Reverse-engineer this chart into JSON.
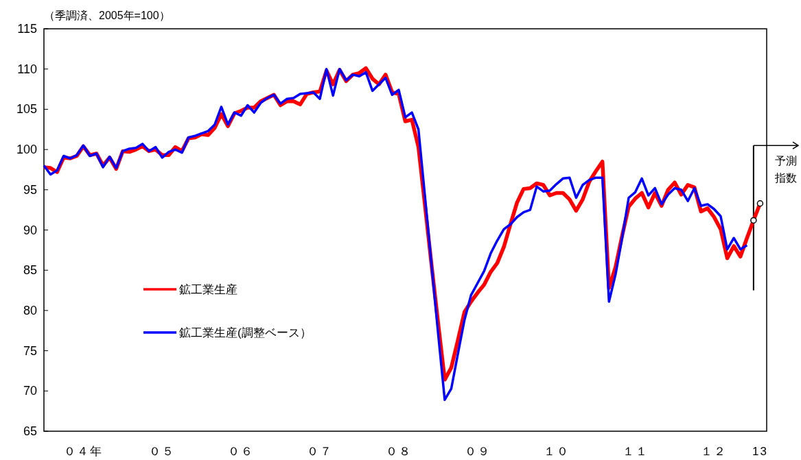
{
  "chart_data": {
    "type": "line",
    "ylabel": "（季調済、2005年=100）",
    "x": [
      "2004-01",
      "2004-02",
      "2004-03",
      "2004-04",
      "2004-05",
      "2004-06",
      "2004-07",
      "2004-08",
      "2004-09",
      "2004-10",
      "2004-11",
      "2004-12",
      "2005-01",
      "2005-02",
      "2005-03",
      "2005-04",
      "2005-05",
      "2005-06",
      "2005-07",
      "2005-08",
      "2005-09",
      "2005-10",
      "2005-11",
      "2005-12",
      "2006-01",
      "2006-02",
      "2006-03",
      "2006-04",
      "2006-05",
      "2006-06",
      "2006-07",
      "2006-08",
      "2006-09",
      "2006-10",
      "2006-11",
      "2006-12",
      "2007-01",
      "2007-02",
      "2007-03",
      "2007-04",
      "2007-05",
      "2007-06",
      "2007-07",
      "2007-08",
      "2007-09",
      "2007-10",
      "2007-11",
      "2007-12",
      "2008-01",
      "2008-02",
      "2008-03",
      "2008-04",
      "2008-05",
      "2008-06",
      "2008-07",
      "2008-08",
      "2008-09",
      "2008-10",
      "2008-11",
      "2008-12",
      "2009-01",
      "2009-02",
      "2009-03",
      "2009-04",
      "2009-05",
      "2009-06",
      "2009-07",
      "2009-08",
      "2009-09",
      "2009-10",
      "2009-11",
      "2009-12",
      "2010-01",
      "2010-02",
      "2010-03",
      "2010-04",
      "2010-05",
      "2010-06",
      "2010-07",
      "2010-08",
      "2010-09",
      "2010-10",
      "2010-11",
      "2010-12",
      "2011-01",
      "2011-02",
      "2011-03",
      "2011-04",
      "2011-05",
      "2011-06",
      "2011-07",
      "2011-08",
      "2011-09",
      "2011-10",
      "2011-11",
      "2011-12",
      "2012-01",
      "2012-02",
      "2012-03",
      "2012-04",
      "2012-05",
      "2012-06",
      "2012-07",
      "2012-08",
      "2012-09",
      "2012-10",
      "2012-11",
      "2012-12",
      "2013-01",
      "2013-02"
    ],
    "series": [
      {
        "name": "鉱工業生産",
        "color": "#ff0000",
        "values": [
          97.8,
          97.7,
          97.2,
          99.0,
          98.9,
          99.2,
          100.4,
          99.3,
          99.5,
          98.0,
          99.0,
          97.6,
          99.8,
          99.7,
          100.0,
          100.4,
          99.8,
          100.0,
          99.3,
          99.3,
          100.3,
          99.8,
          101.4,
          101.5,
          101.9,
          101.8,
          102.7,
          104.4,
          102.9,
          104.5,
          104.8,
          105.2,
          105.2,
          106.0,
          106.4,
          106.8,
          105.5,
          106.0,
          106.0,
          105.6,
          106.9,
          107.1,
          107.2,
          109.8,
          108.1,
          109.9,
          108.5,
          109.3,
          109.5,
          110.1,
          108.8,
          108.1,
          109.3,
          107.1,
          106.9,
          103.5,
          103.7,
          100.3,
          93.0,
          85.6,
          78.4,
          71.4,
          72.9,
          76.3,
          79.8,
          81.1,
          82.2,
          83.2,
          84.8,
          85.9,
          87.9,
          90.7,
          93.4,
          95.1,
          95.2,
          95.8,
          95.6,
          94.3,
          94.6,
          94.6,
          93.8,
          92.4,
          93.8,
          96.0,
          97.3,
          98.5,
          82.8,
          85.4,
          89.3,
          92.9,
          93.9,
          94.6,
          92.8,
          94.6,
          93.0,
          95.0,
          95.9,
          94.4,
          95.6,
          95.3,
          92.3,
          92.7,
          91.6,
          90.1,
          86.5,
          88.0,
          86.7,
          89.0,
          91.2,
          93.3
        ]
      },
      {
        "name": "鉱工業生産(調整ベース）",
        "color": "#0000ff",
        "values": [
          98.0,
          96.9,
          97.4,
          99.2,
          98.9,
          99.3,
          100.5,
          99.2,
          99.5,
          97.8,
          99.1,
          97.7,
          99.8,
          100.1,
          100.2,
          100.7,
          99.8,
          100.3,
          99.0,
          99.7,
          100.0,
          99.6,
          101.5,
          101.7,
          102.0,
          102.3,
          103.1,
          105.3,
          103.1,
          104.6,
          104.2,
          105.5,
          104.6,
          105.8,
          106.4,
          106.8,
          105.7,
          106.3,
          106.4,
          106.9,
          107.0,
          107.1,
          106.3,
          110.0,
          106.7,
          110.0,
          108.6,
          109.3,
          109.1,
          109.6,
          107.3,
          108.1,
          108.9,
          106.8,
          107.4,
          104.0,
          104.6,
          102.5,
          94.1,
          85.6,
          77.1,
          68.9,
          70.3,
          74.6,
          78.8,
          81.9,
          83.4,
          84.9,
          87.1,
          88.7,
          90.1,
          90.7,
          91.6,
          92.2,
          92.5,
          95.4,
          94.8,
          94.9,
          95.7,
          96.4,
          96.5,
          94.0,
          95.6,
          96.2,
          96.5,
          96.5,
          81.1,
          84.5,
          89.0,
          94.0,
          94.7,
          96.4,
          94.3,
          95.2,
          93.2,
          94.4,
          95.2,
          95.0,
          93.6,
          95.2,
          93.0,
          93.2,
          92.6,
          91.7,
          87.6,
          89.0,
          87.6,
          88.1,
          null,
          null
        ]
      },
      {
        "type": "scatter",
        "color": "#000000",
        "marker": "circle",
        "x": [
          "2013-01",
          "2013-02"
        ],
        "values": [
          91.2,
          93.3
        ]
      }
    ],
    "xlim": [
      "2004-01",
      "2013-03"
    ],
    "xticks": [
      {
        "value": "2004-07",
        "label": "０４年"
      },
      {
        "value": "2005-07",
        "label": "０５"
      },
      {
        "value": "2006-07",
        "label": "０６"
      },
      {
        "value": "2007-07",
        "label": "０７"
      },
      {
        "value": "2008-07",
        "label": "０８"
      },
      {
        "value": "2009-07",
        "label": "０９"
      },
      {
        "value": "2010-07",
        "label": "１０"
      },
      {
        "value": "2011-07",
        "label": "１１"
      },
      {
        "value": "2012-07",
        "label": "１２"
      },
      {
        "value": "2013-02",
        "label": "13"
      }
    ],
    "ylim": [
      65,
      115
    ],
    "yticks": [
      65,
      70,
      75,
      80,
      85,
      90,
      95,
      100,
      105,
      110,
      115
    ],
    "ref_lines": [
      {
        "axis": "x",
        "value": "2013-01",
        "label": "予測指数",
        "color": "#000000"
      }
    ],
    "legend": "bottom left",
    "marker": "none",
    "line_style": "solid",
    "grid": false
  }
}
